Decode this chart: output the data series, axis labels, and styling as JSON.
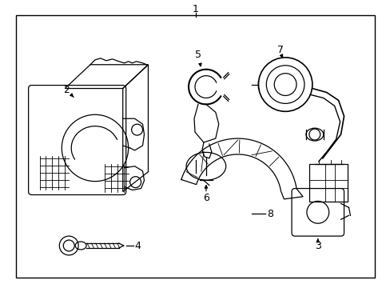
{
  "bg_color": "#ffffff",
  "line_color": "#000000",
  "figure_width": 4.89,
  "figure_height": 3.6,
  "dpi": 100
}
